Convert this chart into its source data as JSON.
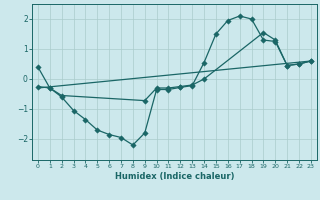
{
  "xlabel": "Humidex (Indice chaleur)",
  "xlim": [
    -0.5,
    23.5
  ],
  "ylim": [
    -2.7,
    2.5
  ],
  "xticks": [
    0,
    1,
    2,
    3,
    4,
    5,
    6,
    7,
    8,
    9,
    10,
    11,
    12,
    13,
    14,
    15,
    16,
    17,
    18,
    19,
    20,
    21,
    22,
    23
  ],
  "yticks": [
    -2,
    -1,
    0,
    1,
    2
  ],
  "bg_color": "#cce8ec",
  "grid_color": "#aacccc",
  "line_color": "#1a6666",
  "curve1_x": [
    0,
    1,
    2,
    3,
    4,
    5,
    6,
    7,
    8,
    9,
    10,
    11,
    12,
    13,
    14,
    15,
    16,
    17,
    18,
    19,
    20,
    21,
    22,
    23
  ],
  "curve1_y": [
    0.4,
    -0.3,
    -0.6,
    -1.05,
    -1.35,
    -1.7,
    -1.85,
    -1.95,
    -2.2,
    -1.8,
    -0.35,
    -0.35,
    -0.28,
    -0.22,
    0.55,
    1.5,
    1.95,
    2.1,
    2.0,
    1.3,
    1.25,
    0.45,
    0.5,
    0.6
  ],
  "curve2_x": [
    0,
    1,
    2,
    9,
    10,
    11,
    12,
    13,
    14,
    19,
    20,
    21,
    22,
    23
  ],
  "curve2_y": [
    -0.25,
    -0.3,
    -0.55,
    -0.72,
    -0.3,
    -0.3,
    -0.25,
    -0.2,
    0.0,
    1.55,
    1.3,
    0.45,
    0.5,
    0.6
  ],
  "curve3_x": [
    0,
    23
  ],
  "curve3_y": [
    -0.3,
    0.6
  ]
}
